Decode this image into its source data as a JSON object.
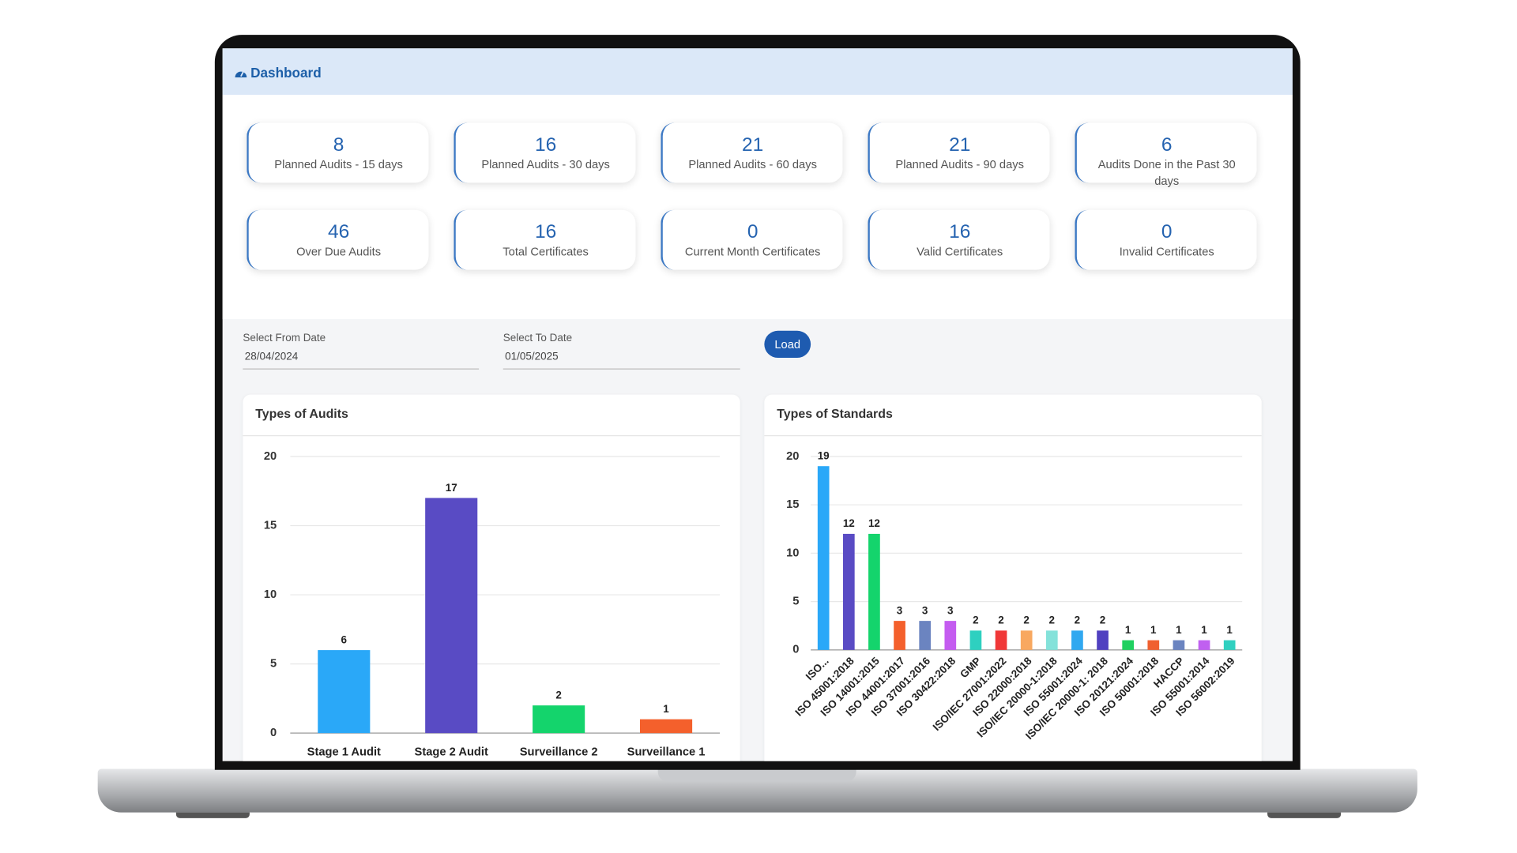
{
  "header": {
    "title": "Dashboard"
  },
  "cards": [
    {
      "value": 8,
      "label": "Planned Audits - 15 days"
    },
    {
      "value": 16,
      "label": "Planned Audits - 30 days"
    },
    {
      "value": 21,
      "label": "Planned Audits - 60 days"
    },
    {
      "value": 21,
      "label": "Planned Audits - 90 days"
    },
    {
      "value": 6,
      "label": "Audits Done in the Past 30 days"
    },
    {
      "value": 46,
      "label": "Over Due Audits"
    },
    {
      "value": 16,
      "label": "Total Certificates"
    },
    {
      "value": 0,
      "label": "Current Month Certificates"
    },
    {
      "value": 16,
      "label": "Valid Certificates"
    },
    {
      "value": 0,
      "label": "Invalid Certificates"
    }
  ],
  "filters": {
    "from_label": "Select From Date",
    "from_value": "28/04/2024",
    "to_label": "Select To Date",
    "to_value": "01/05/2025",
    "button": "Load"
  },
  "chart_data": [
    {
      "type": "bar",
      "title": "Types of Audits",
      "categories": [
        "Stage 1 Audit",
        "Stage 2 Audit",
        "Surveillance 2",
        "Surveillance 1"
      ],
      "values": [
        6,
        17,
        2,
        1
      ],
      "colors": [
        "#2aa8f8",
        "#594bc4",
        "#14d46c",
        "#f4602c"
      ],
      "ylim": [
        0,
        20
      ],
      "yticks": [
        0,
        5,
        10,
        15,
        20
      ],
      "grid": true
    },
    {
      "type": "bar",
      "title": "Types of Standards",
      "categories": [
        "ISO...",
        "ISO 45001:2018",
        "ISO 14001:2015",
        "ISO 44001:2017",
        "ISO 37001:2016",
        "ISO 30422:2018",
        "GMP",
        "ISO/IEC 27001:2022",
        "ISO 22000:2018",
        "ISO/IEC 20000-1:2018",
        "ISO 55001:2024",
        "ISO/IEC 20000-1: 2018",
        "ISO 20121:2024",
        "ISO 50001:2018",
        "HACCP",
        "ISO 55001:2014",
        "ISO 56002:2019"
      ],
      "values": [
        19,
        12,
        12,
        3,
        3,
        3,
        2,
        2,
        2,
        2,
        2,
        2,
        1,
        1,
        1,
        1,
        1
      ],
      "colors": [
        "#2aa8f8",
        "#594bc4",
        "#14d46c",
        "#f4602c",
        "#6b84c0",
        "#c45cf0",
        "#2ed0c0",
        "#f03838",
        "#f8a860",
        "#84e2da",
        "#30a8f0",
        "#5040c0",
        "#20d060",
        "#f06030",
        "#6b84c0",
        "#c060f0",
        "#30d0c0"
      ],
      "ylim": [
        0,
        20
      ],
      "yticks": [
        0,
        5,
        10,
        15,
        20
      ],
      "grid": true
    }
  ]
}
